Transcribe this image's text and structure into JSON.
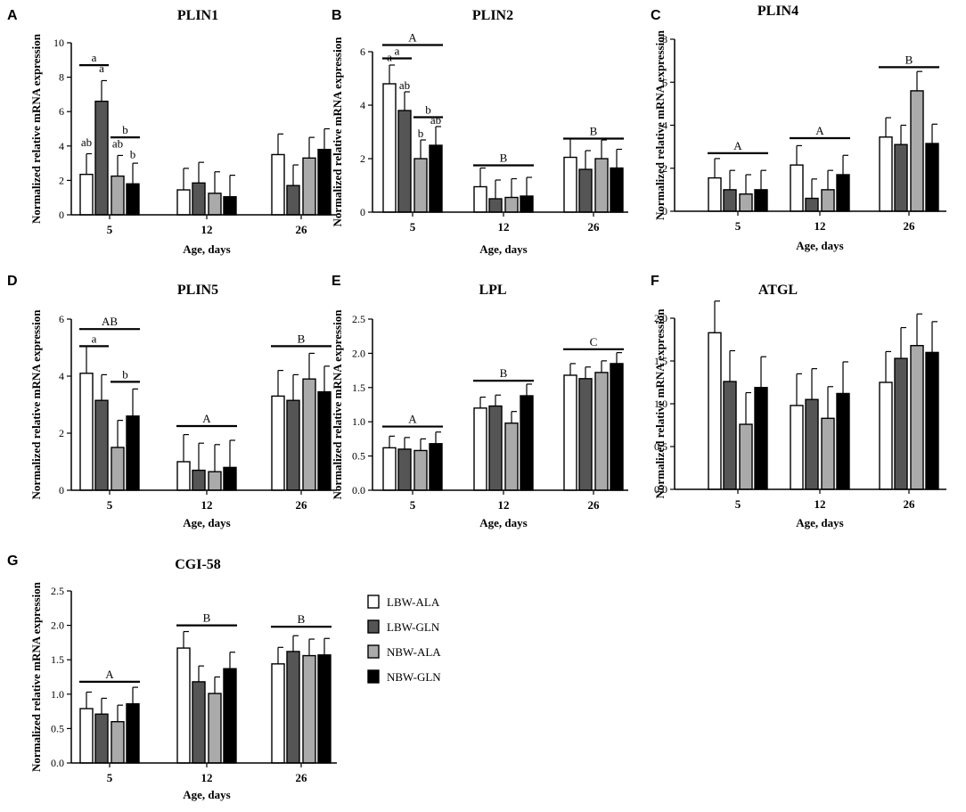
{
  "chart_data": [
    {
      "id": "A",
      "type": "bar",
      "title": "PLIN1",
      "ylabel": "Normalized relative mRNA expression",
      "xlabel": "Age, days",
      "categories": [
        "5",
        "12",
        "26"
      ],
      "ylim": [
        0,
        10
      ],
      "yticks": [
        0,
        2,
        4,
        6,
        8,
        10
      ],
      "series": [
        {
          "name": "LBW-ALA",
          "values": [
            2.35,
            1.45,
            3.5
          ],
          "errors": [
            1.2,
            1.25,
            1.2
          ]
        },
        {
          "name": "LBW-GLN",
          "values": [
            6.6,
            1.85,
            1.7
          ],
          "errors": [
            1.2,
            1.2,
            1.2
          ]
        },
        {
          "name": "NBW-ALA",
          "values": [
            2.25,
            1.25,
            3.3
          ],
          "errors": [
            1.2,
            1.25,
            1.2
          ]
        },
        {
          "name": "NBW-GLN",
          "values": [
            1.8,
            1.05,
            3.8
          ],
          "errors": [
            1.2,
            1.25,
            1.2
          ]
        }
      ],
      "letters": [
        {
          "text": "ab",
          "group": 0,
          "bar": 0,
          "y": 4.0
        },
        {
          "text": "a",
          "group": 0,
          "bar": 1,
          "y": 8.3
        },
        {
          "text": "ab",
          "group": 0,
          "bar": 2,
          "y": 3.9
        },
        {
          "text": "b",
          "group": 0,
          "bar": 3,
          "y": 3.3
        }
      ],
      "brackets": [
        {
          "group": 0,
          "from": 0,
          "to": 1,
          "y": 8.7,
          "text": "a"
        },
        {
          "group": 0,
          "from": 2,
          "to": 3,
          "y": 4.5,
          "text": "b"
        }
      ]
    },
    {
      "id": "B",
      "type": "bar",
      "title": "PLIN2",
      "ylabel": "Normalized relative mRNA expression",
      "xlabel": "Age, days",
      "categories": [
        "5",
        "12",
        "26"
      ],
      "ylim": [
        0,
        6
      ],
      "yticks": [
        0,
        2,
        4,
        6
      ],
      "series": [
        {
          "name": "LBW-ALA",
          "values": [
            4.8,
            0.95,
            2.05
          ],
          "errors": [
            0.7,
            0.7,
            0.7
          ]
        },
        {
          "name": "LBW-GLN",
          "values": [
            3.8,
            0.5,
            1.6
          ],
          "errors": [
            0.7,
            0.7,
            0.7
          ]
        },
        {
          "name": "NBW-ALA",
          "values": [
            2.0,
            0.55,
            2.0
          ],
          "errors": [
            0.7,
            0.7,
            0.7
          ]
        },
        {
          "name": "NBW-GLN",
          "values": [
            2.5,
            0.6,
            1.65
          ],
          "errors": [
            0.7,
            0.7,
            0.7
          ]
        }
      ],
      "letters": [
        {
          "text": "a",
          "group": 0,
          "bar": 0,
          "y": 5.65
        },
        {
          "text": "ab",
          "group": 0,
          "bar": 1,
          "y": 4.6
        },
        {
          "text": "b",
          "group": 0,
          "bar": 2,
          "y": 2.8
        },
        {
          "text": "ab",
          "group": 0,
          "bar": 3,
          "y": 3.3
        }
      ],
      "brackets": [
        {
          "group": 0,
          "from": 0,
          "to": 3,
          "y": 6.25,
          "text": "A"
        },
        {
          "group": 0,
          "from": 0,
          "to": 1,
          "y": 5.75,
          "text": "a"
        },
        {
          "group": 0,
          "from": 2,
          "to": 3,
          "y": 3.55,
          "text": "b"
        },
        {
          "group": 1,
          "from": 0,
          "to": 3,
          "y": 1.75,
          "text": "B"
        },
        {
          "group": 2,
          "from": 0,
          "to": 3,
          "y": 2.75,
          "text": "B"
        }
      ]
    },
    {
      "id": "C",
      "type": "bar",
      "title": "PLIN4",
      "ylabel": "Normalized relative mRNA expression",
      "xlabel": "Age, days",
      "categories": [
        "5",
        "12",
        "26"
      ],
      "ylim": [
        0,
        8
      ],
      "yticks": [
        0,
        2,
        4,
        6,
        8
      ],
      "series": [
        {
          "name": "LBW-ALA",
          "values": [
            1.55,
            2.15,
            3.45
          ],
          "errors": [
            0.9,
            0.9,
            0.9
          ]
        },
        {
          "name": "LBW-GLN",
          "values": [
            1.0,
            0.6,
            3.1
          ],
          "errors": [
            0.9,
            0.9,
            0.9
          ]
        },
        {
          "name": "NBW-ALA",
          "values": [
            0.8,
            1.0,
            5.6
          ],
          "errors": [
            0.9,
            0.9,
            0.9
          ]
        },
        {
          "name": "NBW-GLN",
          "values": [
            1.0,
            1.7,
            3.15
          ],
          "errors": [
            0.9,
            0.9,
            0.9
          ]
        }
      ],
      "letters": [],
      "brackets": [
        {
          "group": 0,
          "from": 0,
          "to": 3,
          "y": 2.7,
          "text": "A"
        },
        {
          "group": 1,
          "from": 0,
          "to": 3,
          "y": 3.4,
          "text": "A"
        },
        {
          "group": 2,
          "from": 0,
          "to": 3,
          "y": 6.7,
          "text": "B"
        }
      ]
    },
    {
      "id": "D",
      "type": "bar",
      "title": "PLIN5",
      "ylabel": "Normalized relative mRNA expression",
      "xlabel": "Age, days",
      "categories": [
        "5",
        "12",
        "26"
      ],
      "ylim": [
        0,
        6
      ],
      "yticks": [
        0,
        2,
        4,
        6
      ],
      "series": [
        {
          "name": "LBW-ALA",
          "values": [
            4.1,
            1.0,
            3.3
          ],
          "errors": [
            0.95,
            0.95,
            0.9
          ]
        },
        {
          "name": "LBW-GLN",
          "values": [
            3.15,
            0.7,
            3.15
          ],
          "errors": [
            0.9,
            0.95,
            0.9
          ]
        },
        {
          "name": "NBW-ALA",
          "values": [
            1.5,
            0.65,
            3.9
          ],
          "errors": [
            0.95,
            0.95,
            0.9
          ]
        },
        {
          "name": "NBW-GLN",
          "values": [
            2.6,
            0.8,
            3.45
          ],
          "errors": [
            0.95,
            0.95,
            0.9
          ]
        }
      ],
      "letters": [],
      "brackets": [
        {
          "group": 0,
          "from": 0,
          "to": 3,
          "y": 5.65,
          "text": "AB"
        },
        {
          "group": 0,
          "from": 0,
          "to": 1,
          "y": 5.05,
          "text": "a"
        },
        {
          "group": 0,
          "from": 2,
          "to": 3,
          "y": 3.8,
          "text": "b"
        },
        {
          "group": 1,
          "from": 0,
          "to": 3,
          "y": 2.25,
          "text": "A"
        },
        {
          "group": 2,
          "from": 0,
          "to": 3,
          "y": 5.05,
          "text": "B"
        }
      ]
    },
    {
      "id": "E",
      "type": "bar",
      "title": "LPL",
      "ylabel": "Normalized relative mRNA expression",
      "xlabel": "Age, days",
      "categories": [
        "5",
        "12",
        "26"
      ],
      "ylim": [
        0,
        2.5
      ],
      "yticks": [
        0.0,
        0.5,
        1.0,
        1.5,
        2.0,
        2.5
      ],
      "series": [
        {
          "name": "LBW-ALA",
          "values": [
            0.62,
            1.2,
            1.68
          ],
          "errors": [
            0.17,
            0.16,
            0.17
          ]
        },
        {
          "name": "LBW-GLN",
          "values": [
            0.6,
            1.23,
            1.63
          ],
          "errors": [
            0.17,
            0.16,
            0.17
          ]
        },
        {
          "name": "NBW-ALA",
          "values": [
            0.58,
            0.98,
            1.72
          ],
          "errors": [
            0.17,
            0.17,
            0.17
          ]
        },
        {
          "name": "NBW-GLN",
          "values": [
            0.68,
            1.38,
            1.85
          ],
          "errors": [
            0.17,
            0.17,
            0.16
          ]
        }
      ],
      "letters": [],
      "brackets": [
        {
          "group": 0,
          "from": 0,
          "to": 3,
          "y": 0.93,
          "text": "A"
        },
        {
          "group": 1,
          "from": 0,
          "to": 3,
          "y": 1.6,
          "text": "B"
        },
        {
          "group": 2,
          "from": 0,
          "to": 3,
          "y": 2.06,
          "text": "C"
        }
      ]
    },
    {
      "id": "F",
      "type": "bar",
      "title": "ATGL",
      "ylabel": "Normalized relative mRNA expression",
      "xlabel": "Age, days",
      "categories": [
        "5",
        "12",
        "26"
      ],
      "ylim": [
        0,
        2.0
      ],
      "yticks": [
        0.0,
        0.5,
        1.0,
        1.5,
        2.0
      ],
      "series": [
        {
          "name": "LBW-ALA",
          "values": [
            1.83,
            0.98,
            1.25
          ],
          "errors": [
            0.37,
            0.37,
            0.36
          ]
        },
        {
          "name": "LBW-GLN",
          "values": [
            1.26,
            1.05,
            1.53
          ],
          "errors": [
            0.36,
            0.36,
            0.36
          ]
        },
        {
          "name": "NBW-ALA",
          "values": [
            0.76,
            0.83,
            1.68
          ],
          "errors": [
            0.37,
            0.37,
            0.37
          ]
        },
        {
          "name": "NBW-GLN",
          "values": [
            1.19,
            1.12,
            1.6
          ],
          "errors": [
            0.36,
            0.37,
            0.36
          ]
        }
      ],
      "letters": [],
      "brackets": []
    },
    {
      "id": "G",
      "type": "bar",
      "title": "CGI-58",
      "ylabel": "Normalized relative mRNA expression",
      "xlabel": "Age, days",
      "categories": [
        "5",
        "12",
        "26"
      ],
      "ylim": [
        0,
        2.5
      ],
      "yticks": [
        0.0,
        0.5,
        1.0,
        1.5,
        2.0,
        2.5
      ],
      "series": [
        {
          "name": "LBW-ALA",
          "values": [
            0.79,
            1.67,
            1.44
          ],
          "errors": [
            0.24,
            0.24,
            0.24
          ]
        },
        {
          "name": "LBW-GLN",
          "values": [
            0.71,
            1.18,
            1.62
          ],
          "errors": [
            0.23,
            0.23,
            0.23
          ]
        },
        {
          "name": "NBW-ALA",
          "values": [
            0.6,
            1.01,
            1.56
          ],
          "errors": [
            0.24,
            0.24,
            0.24
          ]
        },
        {
          "name": "NBW-GLN",
          "values": [
            0.86,
            1.37,
            1.57
          ],
          "errors": [
            0.24,
            0.24,
            0.24
          ]
        }
      ],
      "letters": [],
      "brackets": [
        {
          "group": 0,
          "from": 0,
          "to": 3,
          "y": 1.18,
          "text": "A"
        },
        {
          "group": 1,
          "from": 0,
          "to": 3,
          "y": 2.0,
          "text": "B"
        },
        {
          "group": 2,
          "from": 0,
          "to": 3,
          "y": 1.98,
          "text": "B"
        }
      ]
    }
  ],
  "legend": {
    "items": [
      {
        "name": "LBW-ALA",
        "color": "#ffffff"
      },
      {
        "name": "LBW-GLN",
        "color": "#555555"
      },
      {
        "name": "NBW-ALA",
        "color": "#aaaaaa"
      },
      {
        "name": "NBW-GLN",
        "color": "#000000"
      }
    ]
  }
}
